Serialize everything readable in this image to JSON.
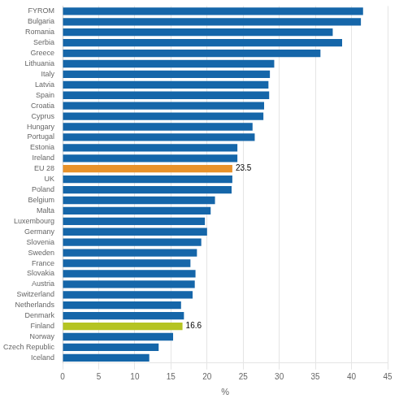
{
  "chart_data": {
    "type": "bar",
    "orientation": "horizontal",
    "categories": [
      "FYROM",
      "Bulgaria",
      "Romania",
      "Serbia",
      "Greece",
      "Lithuania",
      "Italy",
      "Latvia",
      "Spain",
      "Croatia",
      "Cyprus",
      "Hungary",
      "Portugal",
      "Estonia",
      "Ireland",
      "EU 28",
      "UK",
      "Poland",
      "Belgium",
      "Malta",
      "Luxembourg",
      "Germany",
      "Slovenia",
      "Sweden",
      "France",
      "Slovakia",
      "Austria",
      "Switzerland",
      "Netherlands",
      "Denmark",
      "Finland",
      "Norway",
      "Czech Republic",
      "Iceland"
    ],
    "values": [
      41.6,
      41.3,
      37.4,
      38.7,
      35.7,
      29.3,
      28.7,
      28.5,
      28.6,
      27.9,
      27.8,
      26.3,
      26.6,
      24.2,
      24.2,
      23.5,
      23.5,
      23.4,
      21.1,
      20.5,
      19.7,
      20.0,
      19.2,
      18.6,
      17.7,
      18.4,
      18.3,
      18.0,
      16.4,
      16.8,
      16.6,
      15.3,
      13.3,
      12.0
    ],
    "colors": [
      "#1566a9",
      "#1566a9",
      "#1566a9",
      "#1566a9",
      "#1566a9",
      "#1566a9",
      "#1566a9",
      "#1566a9",
      "#1566a9",
      "#1566a9",
      "#1566a9",
      "#1566a9",
      "#1566a9",
      "#1566a9",
      "#1566a9",
      "#e8922a",
      "#1566a9",
      "#1566a9",
      "#1566a9",
      "#1566a9",
      "#1566a9",
      "#1566a9",
      "#1566a9",
      "#1566a9",
      "#1566a9",
      "#1566a9",
      "#1566a9",
      "#1566a9",
      "#1566a9",
      "#1566a9",
      "#b5c422",
      "#1566a9",
      "#1566a9",
      "#1566a9"
    ],
    "annotations": [
      {
        "category": "EU 28",
        "text": "23.5"
      },
      {
        "category": "Finland",
        "text": "16.6"
      }
    ],
    "xlabel": "%",
    "xlim": [
      0,
      45
    ],
    "xticks": [
      0,
      5,
      10,
      15,
      20,
      25,
      30,
      35,
      40,
      45
    ],
    "grid": true
  }
}
